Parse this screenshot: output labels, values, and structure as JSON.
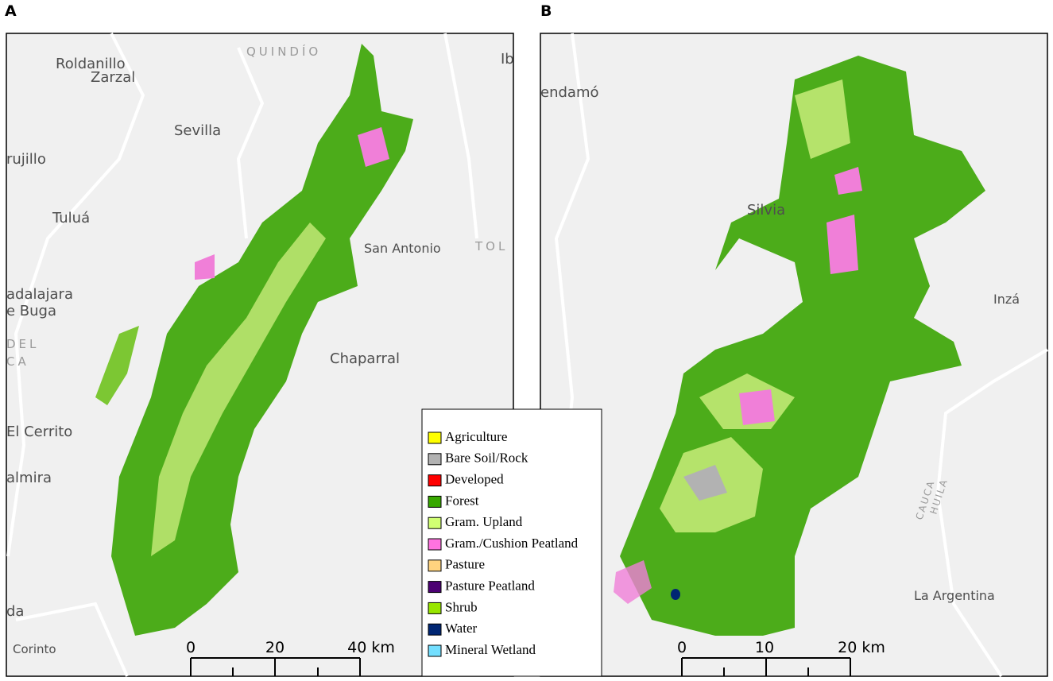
{
  "panels": [
    {
      "label": "A",
      "places": [
        "Roldanillo",
        "Zarzal",
        "QUINDÍO",
        "Ib",
        "Sevilla",
        "rujillo",
        "Tuluá",
        "San Antonio",
        "TOL",
        "adalajara",
        "e Buga",
        "DEL",
        "CA",
        "Chaparral",
        "El Cerrito",
        "almira",
        "da",
        "Corinto"
      ],
      "scale": [
        "0",
        "20",
        "40 km"
      ]
    },
    {
      "label": "B",
      "places": [
        "endamó",
        "Silvia",
        "Inzá",
        "CAUCA",
        "HUILA",
        "La Argentina"
      ],
      "scale": [
        "0",
        "10",
        "20 km"
      ]
    }
  ],
  "legend": {
    "items": [
      {
        "name": "Agriculture",
        "color": "#ffff00"
      },
      {
        "name": "Bare Soil/Rock",
        "color": "#b2b2b2"
      },
      {
        "name": "Developed",
        "color": "#ff0000"
      },
      {
        "name": "Forest",
        "color": "#38a800"
      },
      {
        "name": "Gram. Upland",
        "color": "#d1ff73"
      },
      {
        "name": "Gram./Cushion Peatland",
        "color": "#ff73df"
      },
      {
        "name": "Pasture",
        "color": "#ffd37f"
      },
      {
        "name": "Pasture Peatland",
        "color": "#4c0073"
      },
      {
        "name": "Shrub",
        "color": "#98e600"
      },
      {
        "name": "Water",
        "color": "#002673"
      },
      {
        "name": "Mineral Wetland",
        "color": "#73dfff"
      }
    ]
  }
}
